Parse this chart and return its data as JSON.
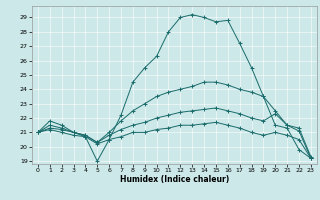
{
  "title": "",
  "xlabel": "Humidex (Indice chaleur)",
  "bg_color": "#cce8e8",
  "line_color": "#1a6b6b",
  "xlim": [
    -0.5,
    23.5
  ],
  "ylim": [
    18.8,
    29.8
  ],
  "yticks": [
    19,
    20,
    21,
    22,
    23,
    24,
    25,
    26,
    27,
    28,
    29
  ],
  "xticks": [
    0,
    1,
    2,
    3,
    4,
    5,
    6,
    7,
    8,
    9,
    10,
    11,
    12,
    13,
    14,
    15,
    16,
    17,
    18,
    19,
    20,
    21,
    22,
    23
  ],
  "lines": [
    {
      "x": [
        0,
        1,
        2,
        3,
        4,
        5,
        6,
        7,
        8,
        9,
        10,
        11,
        12,
        13,
        14,
        15,
        16,
        17,
        18,
        19,
        20,
        21,
        22,
        23
      ],
      "y": [
        21.0,
        21.8,
        21.5,
        21.0,
        20.7,
        19.0,
        20.5,
        22.2,
        24.5,
        25.5,
        26.3,
        28.0,
        29.0,
        29.2,
        29.0,
        28.7,
        28.8,
        27.2,
        25.5,
        23.5,
        21.5,
        21.3,
        19.8,
        19.2
      ]
    },
    {
      "x": [
        0,
        1,
        2,
        3,
        4,
        5,
        6,
        7,
        8,
        9,
        10,
        11,
        12,
        13,
        14,
        15,
        16,
        17,
        18,
        19,
        20,
        21,
        22,
        23
      ],
      "y": [
        21.0,
        21.5,
        21.3,
        21.0,
        20.8,
        20.3,
        21.0,
        21.8,
        22.5,
        23.0,
        23.5,
        23.8,
        24.0,
        24.2,
        24.5,
        24.5,
        24.3,
        24.0,
        23.8,
        23.5,
        22.5,
        21.5,
        21.3,
        19.3
      ]
    },
    {
      "x": [
        0,
        1,
        2,
        3,
        4,
        5,
        6,
        7,
        8,
        9,
        10,
        11,
        12,
        13,
        14,
        15,
        16,
        17,
        18,
        19,
        20,
        21,
        22,
        23
      ],
      "y": [
        21.0,
        21.3,
        21.2,
        21.0,
        20.8,
        20.3,
        20.8,
        21.2,
        21.5,
        21.7,
        22.0,
        22.2,
        22.4,
        22.5,
        22.6,
        22.7,
        22.5,
        22.3,
        22.0,
        21.8,
        22.3,
        21.5,
        21.1,
        19.2
      ]
    },
    {
      "x": [
        0,
        1,
        2,
        3,
        4,
        5,
        6,
        7,
        8,
        9,
        10,
        11,
        12,
        13,
        14,
        15,
        16,
        17,
        18,
        19,
        20,
        21,
        22,
        23
      ],
      "y": [
        21.0,
        21.2,
        21.0,
        20.8,
        20.7,
        20.2,
        20.5,
        20.7,
        21.0,
        21.0,
        21.2,
        21.3,
        21.5,
        21.5,
        21.6,
        21.7,
        21.5,
        21.3,
        21.0,
        20.8,
        21.0,
        20.8,
        20.5,
        19.2
      ]
    }
  ]
}
